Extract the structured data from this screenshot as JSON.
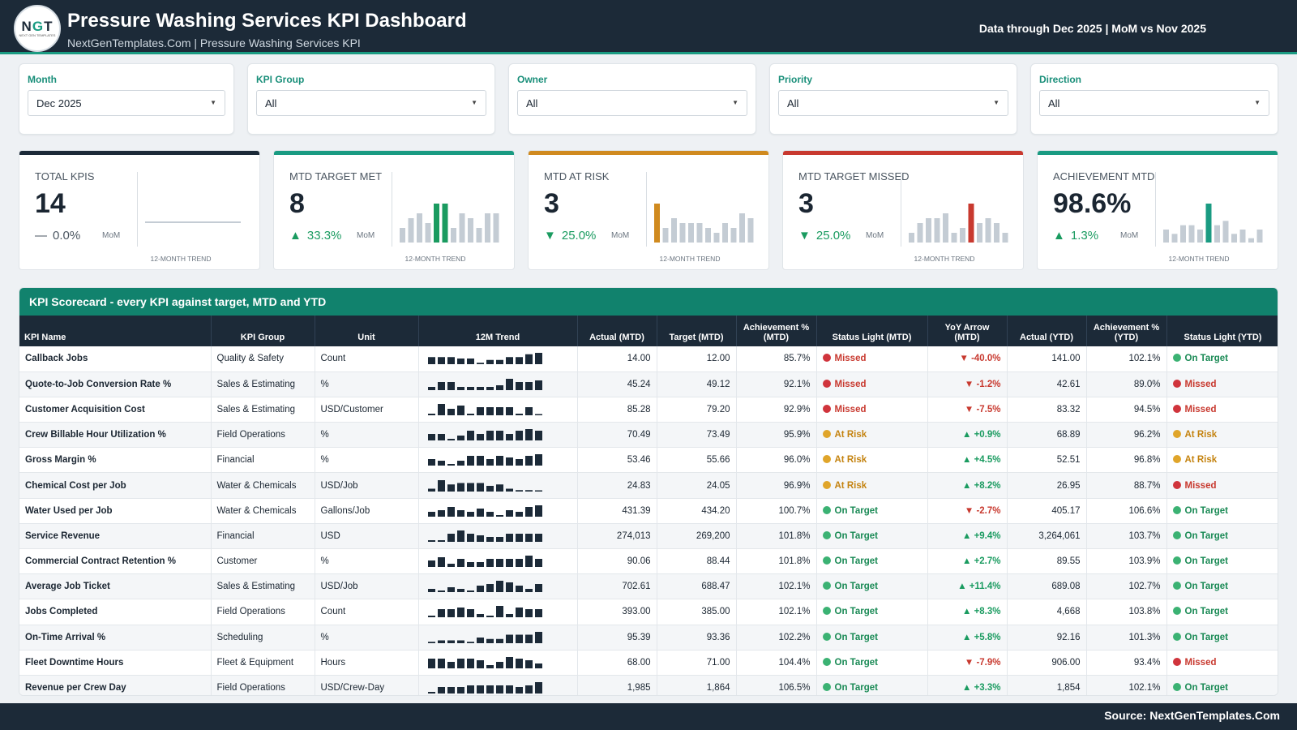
{
  "header": {
    "logo_text": "NGT",
    "logo_subtext": "NEXT GEN TEMPLATES",
    "title": "Pressure Washing Services KPI Dashboard",
    "subtitle": "NextGenTemplates.Com | Pressure Washing Services KPI",
    "data_through": "Data through Dec 2025 | MoM vs Nov 2025"
  },
  "filters": [
    {
      "label": "Month",
      "value": "Dec 2025"
    },
    {
      "label": "KPI Group",
      "value": "All"
    },
    {
      "label": "Owner",
      "value": "All"
    },
    {
      "label": "Priority",
      "value": "All"
    },
    {
      "label": "Direction",
      "value": "All"
    }
  ],
  "kpi_cards": [
    {
      "label": "TOTAL KPIS",
      "value": "14",
      "change": "0.0%",
      "direction": "flat",
      "mom_label": "MoM",
      "trend_label": "12-MONTH TREND",
      "accent": "#1c2a38",
      "highlight_color": "#1c2a38",
      "trend": [],
      "highlight_index": -1
    },
    {
      "label": "MTD TARGET MET",
      "value": "8",
      "change": "33.3%",
      "direction": "up",
      "mom_label": "MoM",
      "trend_label": "12-MONTH TREND",
      "accent": "#1a9b82",
      "highlight_color": "#1a9b60",
      "trend": [
        3,
        5,
        6,
        4,
        8,
        8,
        3,
        6,
        5,
        3,
        6,
        6
      ],
      "highlight_index": [
        4,
        5
      ]
    },
    {
      "label": "MTD AT RISK",
      "value": "3",
      "change": "25.0%",
      "direction": "down",
      "mom_label": "MoM",
      "trend_label": "12-MONTH TREND",
      "accent": "#d08a1f",
      "highlight_color": "#d08a1f",
      "trend": [
        8,
        3,
        5,
        4,
        4,
        4,
        3,
        2,
        4,
        3,
        6,
        5
      ],
      "highlight_index": [
        0
      ]
    },
    {
      "label": "MTD TARGET MISSED",
      "value": "3",
      "change": "25.0%",
      "direction": "down",
      "mom_label": "MoM",
      "trend_label": "12-MONTH TREND",
      "accent": "#c8392f",
      "highlight_color": "#c8392f",
      "trend": [
        2,
        4,
        5,
        5,
        6,
        2,
        3,
        8,
        4,
        5,
        4,
        2
      ],
      "highlight_index": [
        7
      ]
    },
    {
      "label": "ACHIEVEMENT MTD",
      "value": "98.6%",
      "change": "1.3%",
      "direction": "up",
      "mom_label": "MoM",
      "trend_label": "12-MONTH TREND",
      "accent": "#1a9b82",
      "highlight_color": "#1a9b82",
      "trend": [
        3,
        2,
        4,
        4,
        3,
        9,
        4,
        5,
        2,
        3,
        1,
        3
      ],
      "highlight_index": [
        5
      ]
    }
  ],
  "scorecard": {
    "title": "KPI Scorecard - every KPI against target, MTD and YTD",
    "columns": [
      "KPI Name",
      "KPI Group",
      "Unit",
      "12M Trend",
      "Actual (MTD)",
      "Target (MTD)",
      "Achievement % (MTD)",
      "Status Light (MTD)",
      "YoY Arrow (MTD)",
      "Actual (YTD)",
      "Achievement % (YTD)",
      "Status Light (YTD)"
    ],
    "status_colors": {
      "Missed": "#d0343c",
      "At Risk": "#e0a52a",
      "On Target": "#3bb273"
    },
    "status_text_colors": {
      "Missed": "#c8392f",
      "At Risk": "#c48310",
      "On Target": "#1a8a55"
    },
    "rows": [
      {
        "name": "Callback Jobs",
        "group": "Quality & Safety",
        "unit": "Count",
        "trend": [
          5,
          5,
          5,
          4,
          4,
          1,
          3,
          3,
          5,
          5,
          7,
          8
        ],
        "actual_mtd": "14.00",
        "target_mtd": "12.00",
        "ach_mtd": "85.7%",
        "status_mtd": "Missed",
        "yoy_dir": "down",
        "yoy": "-40.0%",
        "actual_ytd": "141.00",
        "ach_ytd": "102.1%",
        "status_ytd": "On Target"
      },
      {
        "name": "Quote-to-Job Conversion Rate %",
        "group": "Sales & Estimating",
        "unit": "%",
        "trend": [
          2,
          5,
          5,
          2,
          2,
          2,
          2,
          3,
          7,
          5,
          5,
          6
        ],
        "actual_mtd": "45.24",
        "target_mtd": "49.12",
        "ach_mtd": "92.1%",
        "status_mtd": "Missed",
        "yoy_dir": "down",
        "yoy": "-1.2%",
        "actual_ytd": "42.61",
        "ach_ytd": "89.0%",
        "status_ytd": "Missed"
      },
      {
        "name": "Customer Acquisition Cost",
        "group": "Sales & Estimating",
        "unit": "USD/Customer",
        "trend": [
          1,
          7,
          4,
          6,
          1,
          5,
          5,
          5,
          5,
          1,
          5,
          0
        ],
        "actual_mtd": "85.28",
        "target_mtd": "79.20",
        "ach_mtd": "92.9%",
        "status_mtd": "Missed",
        "yoy_dir": "down",
        "yoy": "-7.5%",
        "actual_ytd": "83.32",
        "ach_ytd": "94.5%",
        "status_ytd": "Missed"
      },
      {
        "name": "Crew Billable Hour Utilization %",
        "group": "Field Operations",
        "unit": "%",
        "trend": [
          4,
          4,
          1,
          3,
          6,
          4,
          6,
          6,
          4,
          6,
          7,
          6
        ],
        "actual_mtd": "70.49",
        "target_mtd": "73.49",
        "ach_mtd": "95.9%",
        "status_mtd": "At Risk",
        "yoy_dir": "up",
        "yoy": "+0.9%",
        "actual_ytd": "68.89",
        "ach_ytd": "96.2%",
        "status_ytd": "At Risk"
      },
      {
        "name": "Gross Margin %",
        "group": "Financial",
        "unit": "%",
        "trend": [
          4,
          3,
          1,
          3,
          6,
          6,
          4,
          6,
          5,
          4,
          6,
          7
        ],
        "actual_mtd": "53.46",
        "target_mtd": "55.66",
        "ach_mtd": "96.0%",
        "status_mtd": "At Risk",
        "yoy_dir": "up",
        "yoy": "+4.5%",
        "actual_ytd": "52.51",
        "ach_ytd": "96.8%",
        "status_ytd": "At Risk"
      },
      {
        "name": "Chemical Cost per Job",
        "group": "Water & Chemicals",
        "unit": "USD/Job",
        "trend": [
          2,
          8,
          5,
          6,
          6,
          6,
          4,
          5,
          2,
          1,
          1,
          0
        ],
        "actual_mtd": "24.83",
        "target_mtd": "24.05",
        "ach_mtd": "96.9%",
        "status_mtd": "At Risk",
        "yoy_dir": "up",
        "yoy": "+8.2%",
        "actual_ytd": "26.95",
        "ach_ytd": "88.7%",
        "status_ytd": "Missed"
      },
      {
        "name": "Water Used per Job",
        "group": "Water & Chemicals",
        "unit": "Gallons/Job",
        "trend": [
          3,
          4,
          6,
          4,
          3,
          5,
          3,
          1,
          4,
          3,
          6,
          7
        ],
        "actual_mtd": "431.39",
        "target_mtd": "434.20",
        "ach_mtd": "100.7%",
        "status_mtd": "On Target",
        "yoy_dir": "down",
        "yoy": "-2.7%",
        "actual_ytd": "405.17",
        "ach_ytd": "106.6%",
        "status_ytd": "On Target"
      },
      {
        "name": "Service Revenue",
        "group": "Financial",
        "unit": "USD",
        "trend": [
          1,
          1,
          5,
          7,
          5,
          4,
          3,
          3,
          5,
          5,
          5,
          5
        ],
        "actual_mtd": "274,013",
        "target_mtd": "269,200",
        "ach_mtd": "101.8%",
        "status_mtd": "On Target",
        "yoy_dir": "up",
        "yoy": "+9.4%",
        "actual_ytd": "3,264,061",
        "ach_ytd": "103.7%",
        "status_ytd": "On Target"
      },
      {
        "name": "Commercial Contract Retention %",
        "group": "Customer",
        "unit": "%",
        "trend": [
          4,
          6,
          2,
          5,
          3,
          3,
          5,
          5,
          5,
          5,
          7,
          5
        ],
        "actual_mtd": "90.06",
        "target_mtd": "88.44",
        "ach_mtd": "101.8%",
        "status_mtd": "On Target",
        "yoy_dir": "up",
        "yoy": "+2.7%",
        "actual_ytd": "89.55",
        "ach_ytd": "103.9%",
        "status_ytd": "On Target"
      },
      {
        "name": "Average Job Ticket",
        "group": "Sales & Estimating",
        "unit": "USD/Job",
        "trend": [
          2,
          1,
          3,
          2,
          1,
          4,
          5,
          7,
          6,
          4,
          2,
          5
        ],
        "actual_mtd": "702.61",
        "target_mtd": "688.47",
        "ach_mtd": "102.1%",
        "status_mtd": "On Target",
        "yoy_dir": "up",
        "yoy": "+11.4%",
        "actual_ytd": "689.08",
        "ach_ytd": "102.7%",
        "status_ytd": "On Target"
      },
      {
        "name": "Jobs Completed",
        "group": "Field Operations",
        "unit": "Count",
        "trend": [
          1,
          5,
          5,
          6,
          5,
          2,
          1,
          7,
          2,
          6,
          5,
          5
        ],
        "actual_mtd": "393.00",
        "target_mtd": "385.00",
        "ach_mtd": "102.1%",
        "status_mtd": "On Target",
        "yoy_dir": "up",
        "yoy": "+8.3%",
        "actual_ytd": "4,668",
        "ach_ytd": "103.8%",
        "status_ytd": "On Target"
      },
      {
        "name": "On-Time Arrival %",
        "group": "Scheduling",
        "unit": "%",
        "trend": [
          1,
          2,
          2,
          2,
          1,
          4,
          3,
          3,
          6,
          6,
          6,
          8
        ],
        "actual_mtd": "95.39",
        "target_mtd": "93.36",
        "ach_mtd": "102.2%",
        "status_mtd": "On Target",
        "yoy_dir": "up",
        "yoy": "+5.8%",
        "actual_ytd": "92.16",
        "ach_ytd": "101.3%",
        "status_ytd": "On Target"
      },
      {
        "name": "Fleet Downtime Hours",
        "group": "Fleet & Equipment",
        "unit": "Hours",
        "trend": [
          6,
          6,
          4,
          6,
          6,
          5,
          2,
          4,
          7,
          6,
          5,
          3
        ],
        "actual_mtd": "68.00",
        "target_mtd": "71.00",
        "ach_mtd": "104.4%",
        "status_mtd": "On Target",
        "yoy_dir": "down",
        "yoy": "-7.9%",
        "actual_ytd": "906.00",
        "ach_ytd": "93.4%",
        "status_ytd": "Missed"
      },
      {
        "name": "Revenue per Crew Day",
        "group": "Field Operations",
        "unit": "USD/Crew-Day",
        "trend": [
          1,
          4,
          4,
          4,
          5,
          5,
          5,
          5,
          5,
          4,
          5,
          7
        ],
        "actual_mtd": "1,985",
        "target_mtd": "1,864",
        "ach_mtd": "106.5%",
        "status_mtd": "On Target",
        "yoy_dir": "up",
        "yoy": "+3.3%",
        "actual_ytd": "1,854",
        "ach_ytd": "102.1%",
        "status_ytd": "On Target"
      }
    ]
  },
  "colors": {
    "navy": "#1c2a38",
    "teal": "#1a9b82",
    "up": "#1a9b60",
    "down_good": "#1a9b60",
    "spark_grey": "#c4ccd4"
  },
  "footer": {
    "source": "Source: NextGenTemplates.Com"
  }
}
